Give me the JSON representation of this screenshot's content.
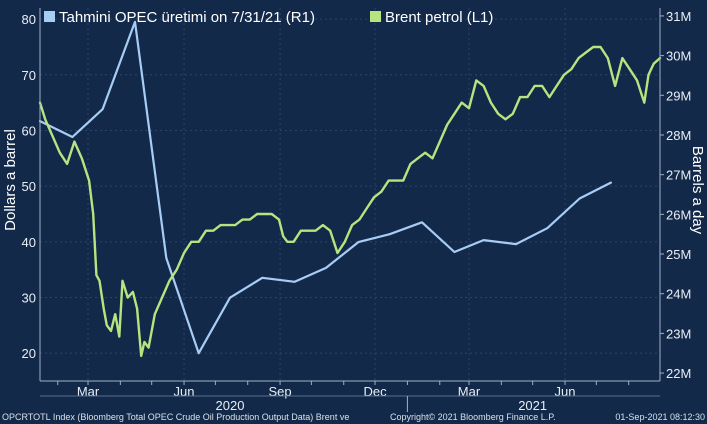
{
  "chart_data": {
    "type": "line",
    "legend": [
      {
        "label": "Tahmini OPEC üretimi on 7/31/21 (R1)",
        "color": "#a8cdf5"
      },
      {
        "label": "Brent petrol (L1)",
        "color": "#b6e57f"
      }
    ],
    "ylabel_left": "Dollars a barrel",
    "ylabel_right": "Barrels a day",
    "y_left": {
      "min": 15,
      "max": 82,
      "ticks": [
        "20",
        "30",
        "40",
        "50",
        "60",
        "70",
        "80"
      ],
      "tick_values": [
        20,
        30,
        40,
        50,
        60,
        70,
        80
      ]
    },
    "y_right": {
      "min": 21.8,
      "max": 31.2,
      "ticks": [
        "22M",
        "23M",
        "24M",
        "25M",
        "26M",
        "27M",
        "28M",
        "29M",
        "30M",
        "31M"
      ],
      "tick_values": [
        22,
        23,
        24,
        25,
        26,
        27,
        28,
        29,
        30,
        31
      ]
    },
    "x_axis": {
      "start": "2020-01-15",
      "end": "2021-08-31",
      "month_ticks": [
        "Mar",
        "Jun",
        "Sep",
        "Dec",
        "Mar",
        "Jun"
      ],
      "month_tick_dates": [
        "2020-03-01",
        "2020-06-01",
        "2020-09-01",
        "2020-12-01",
        "2021-03-01",
        "2021-06-01"
      ],
      "years": [
        "2020",
        "2021"
      ],
      "year_dates": [
        "2020-07-15",
        "2021-05-01"
      ]
    },
    "series": [
      {
        "name": "Tahmini OPEC üretimi on 7/31/21 (R1)",
        "axis": "right",
        "x": [
          "2020-01-15",
          "2020-02-15",
          "2020-03-15",
          "2020-04-15",
          "2020-05-15",
          "2020-06-15",
          "2020-07-15",
          "2020-08-15",
          "2020-09-15",
          "2020-10-15",
          "2020-11-15",
          "2020-12-15",
          "2021-01-15",
          "2021-02-15",
          "2021-03-15",
          "2021-04-15",
          "2021-05-15",
          "2021-06-15",
          "2021-07-15"
        ],
        "y": [
          28.35,
          27.95,
          28.65,
          30.85,
          24.9,
          22.5,
          23.9,
          24.4,
          24.3,
          24.65,
          25.3,
          25.5,
          25.8,
          25.05,
          25.35,
          25.25,
          25.65,
          26.4,
          26.8
        ]
      },
      {
        "name": "Brent petrol (L1)",
        "axis": "left",
        "x": [
          "2020-01-15",
          "2020-01-20",
          "2020-01-27",
          "2020-02-03",
          "2020-02-10",
          "2020-02-17",
          "2020-02-24",
          "2020-03-02",
          "2020-03-06",
          "2020-03-09",
          "2020-03-12",
          "2020-03-16",
          "2020-03-19",
          "2020-03-23",
          "2020-03-27",
          "2020-03-31",
          "2020-04-03",
          "2020-04-08",
          "2020-04-13",
          "2020-04-17",
          "2020-04-21",
          "2020-04-24",
          "2020-04-28",
          "2020-05-04",
          "2020-05-11",
          "2020-05-18",
          "2020-05-25",
          "2020-06-01",
          "2020-06-08",
          "2020-06-15",
          "2020-06-22",
          "2020-06-29",
          "2020-07-06",
          "2020-07-13",
          "2020-07-20",
          "2020-07-27",
          "2020-08-03",
          "2020-08-10",
          "2020-08-17",
          "2020-08-24",
          "2020-08-31",
          "2020-09-04",
          "2020-09-08",
          "2020-09-14",
          "2020-09-21",
          "2020-09-28",
          "2020-10-05",
          "2020-10-12",
          "2020-10-19",
          "2020-10-26",
          "2020-11-02",
          "2020-11-09",
          "2020-11-16",
          "2020-11-23",
          "2020-11-30",
          "2020-12-07",
          "2020-12-14",
          "2020-12-21",
          "2020-12-28",
          "2021-01-04",
          "2021-01-11",
          "2021-01-18",
          "2021-01-25",
          "2021-02-01",
          "2021-02-08",
          "2021-02-15",
          "2021-02-22",
          "2021-03-01",
          "2021-03-08",
          "2021-03-15",
          "2021-03-22",
          "2021-03-29",
          "2021-04-05",
          "2021-04-12",
          "2021-04-19",
          "2021-04-26",
          "2021-05-03",
          "2021-05-10",
          "2021-05-17",
          "2021-05-24",
          "2021-05-31",
          "2021-06-07",
          "2021-06-14",
          "2021-06-21",
          "2021-06-28",
          "2021-07-05",
          "2021-07-12",
          "2021-07-19",
          "2021-07-26",
          "2021-08-02",
          "2021-08-09",
          "2021-08-16",
          "2021-08-20",
          "2021-08-25",
          "2021-08-31"
        ],
        "y": [
          65,
          62,
          59,
          56,
          54,
          58,
          55,
          51,
          45,
          34,
          33,
          28,
          25,
          24,
          27,
          23,
          33,
          30,
          31,
          28,
          19.5,
          22,
          21,
          27,
          30,
          33,
          35,
          38,
          40,
          40,
          42,
          42,
          43,
          43,
          43,
          44,
          44,
          45,
          45,
          45,
          44,
          41,
          40,
          40,
          42,
          42,
          42,
          43,
          42,
          38,
          40,
          43,
          44,
          46,
          48,
          49,
          51,
          51,
          51,
          54,
          55,
          56,
          55,
          58,
          61,
          63,
          65,
          64,
          69,
          68,
          65,
          63,
          62,
          63,
          66,
          66,
          68,
          68,
          66,
          68,
          70,
          71,
          73,
          74,
          75,
          75,
          73,
          68,
          73,
          71,
          69,
          65,
          70,
          72,
          73
        ]
      }
    ],
    "footer_left": "OPCRTOTL Index (Bloomberg Total OPEC Crude Oil Production Output Data) Brent ve",
    "footer_center": "Copyright© 2021 Bloomberg Finance L.P.",
    "footer_right": "01-Sep-2021 08:12:30"
  }
}
